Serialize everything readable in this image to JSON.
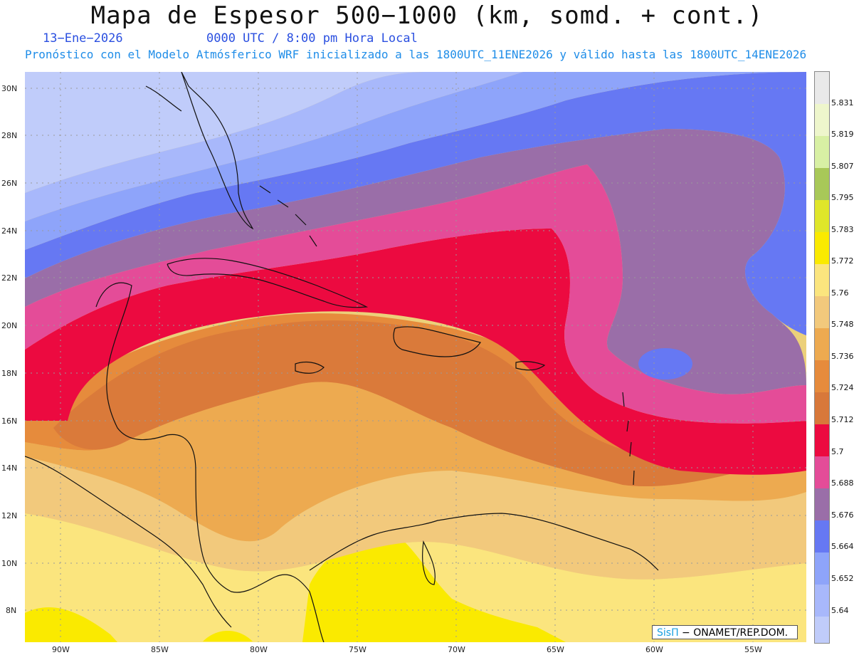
{
  "header": {
    "title": "Mapa de Espesor 500−1000 (km, somd. + cont.)",
    "date": "13−Ene−2026",
    "time": "0000 UTC / 8:00 pm Hora Local",
    "subtitle": "Pronóstico con el Modelo Atmósferico WRF inicializado a las 1800UTC_11ENE2026 y válido hasta las  1800UTC_14ENE2026"
  },
  "axes": {
    "lat_labels": [
      "30N",
      "28N",
      "26N",
      "24N",
      "22N",
      "20N",
      "18N",
      "16N",
      "14N",
      "12N",
      "10N",
      "8N"
    ],
    "lon_labels": [
      "90W",
      "85W",
      "80W",
      "75W",
      "70W",
      "65W",
      "60W",
      "55W"
    ]
  },
  "legend": {
    "levels": [
      "5.64",
      "5.652",
      "5.664",
      "5.676",
      "5.688",
      "5.7",
      "5.712",
      "5.724",
      "5.736",
      "5.748",
      "5.76",
      "5.772",
      "5.783",
      "5.795",
      "5.807",
      "5.819",
      "5.831"
    ],
    "colors": [
      "#c0ccfa",
      "#a8b8fb",
      "#8ea4fa",
      "#6678f3",
      "#9a6ea8",
      "#e44c98",
      "#ec0a40",
      "#d8783a",
      "#e68b3c",
      "#edaa50",
      "#f2c97c",
      "#fbe57e",
      "#faea00",
      "#dfe62a",
      "#a8c858",
      "#d8f0a4",
      "#eef6cc",
      "#e9e9e9"
    ]
  },
  "credit": {
    "brand": "SisΠ",
    "text": " − ONAMET/REP.DOM."
  }
}
